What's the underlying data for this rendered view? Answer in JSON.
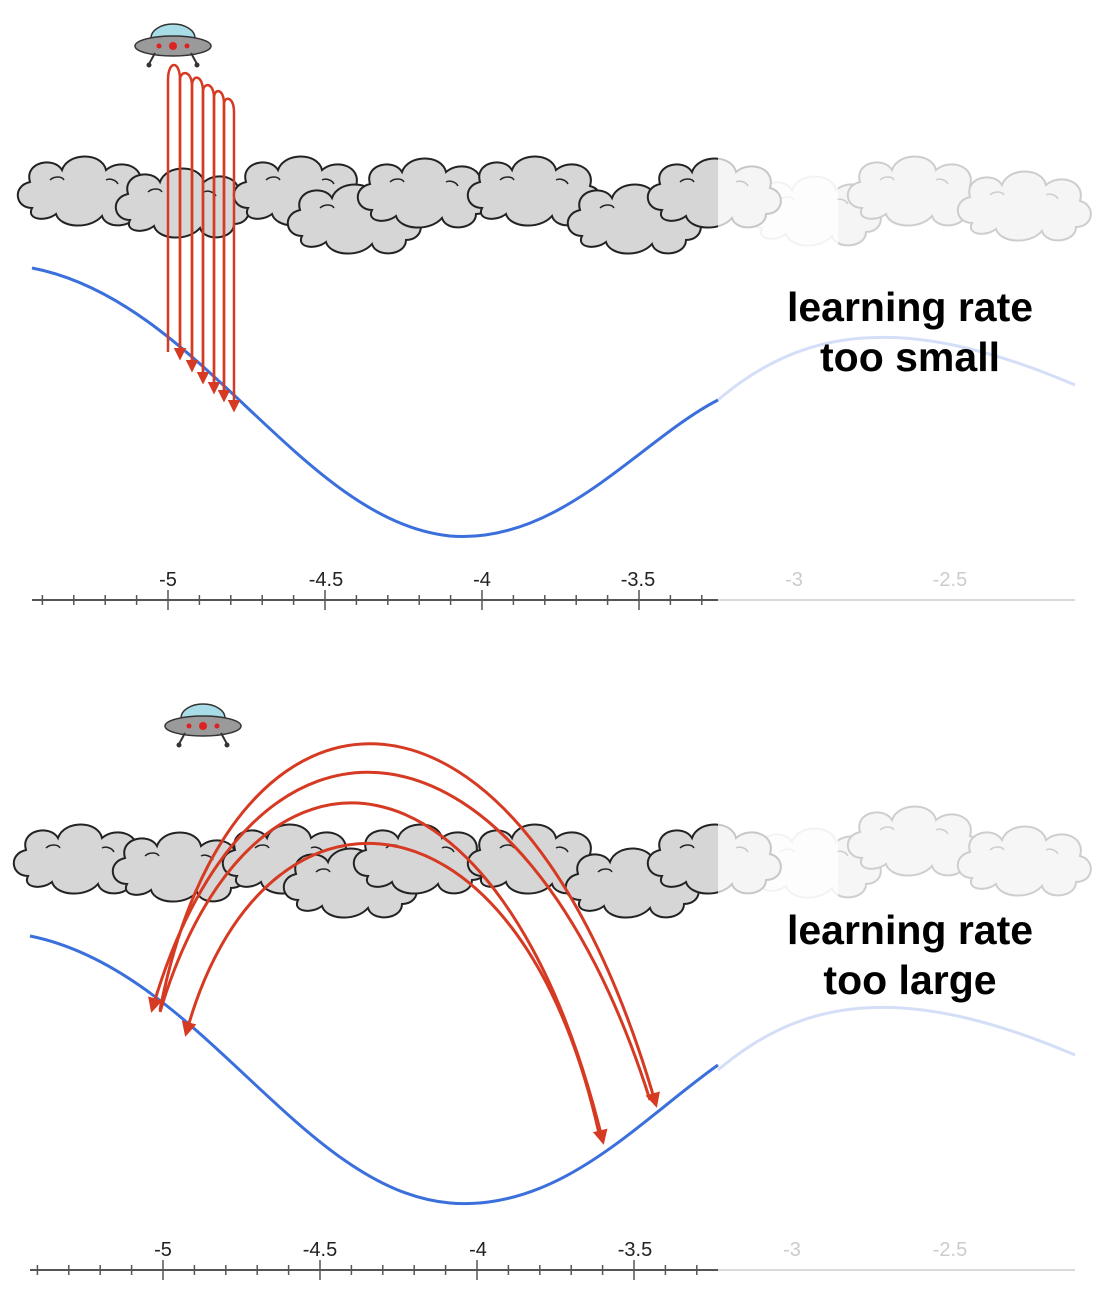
{
  "panels": [
    {
      "caption_line1": "learning rate",
      "caption_line2": "too small",
      "axis_ticks": [
        "-5",
        "-4.5",
        "-4",
        "-3.5",
        "-3",
        "-2.5"
      ]
    },
    {
      "caption_line1": "learning rate",
      "caption_line2": "too large",
      "axis_ticks": [
        "-5",
        "-4.5",
        "-4",
        "-3.5",
        "-3",
        "-2.5"
      ]
    }
  ],
  "colors": {
    "curve": "#3b6fdc",
    "arrows": "#d63a22",
    "cloud_fill": "#d6d6d6",
    "cloud_stroke": "#222222",
    "axis": "#555555"
  },
  "icons": [
    "ufo-icon",
    "cloud-icon"
  ]
}
